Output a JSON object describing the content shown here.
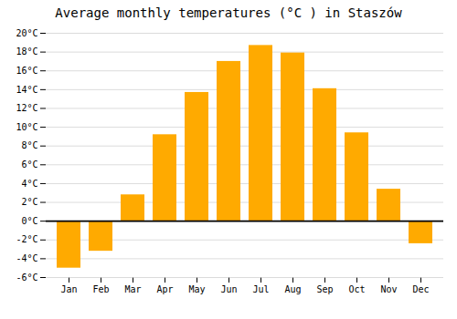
{
  "chart_data": {
    "type": "bar",
    "title": "Average monthly temperatures (°C ) in Staszów",
    "categories": [
      "Jan",
      "Feb",
      "Mar",
      "Apr",
      "May",
      "Jun",
      "Jul",
      "Aug",
      "Sep",
      "Oct",
      "Nov",
      "Dec"
    ],
    "values": [
      -5.0,
      -3.2,
      2.8,
      9.2,
      13.7,
      17.0,
      18.7,
      17.9,
      14.1,
      9.4,
      3.4,
      -2.4
    ],
    "color": "#FFAA00",
    "ylim": [
      -6,
      20
    ],
    "yticks": [
      {
        "value": -6,
        "label": "-6°C"
      },
      {
        "value": -4,
        "label": "-4°C"
      },
      {
        "value": -2,
        "label": "-2°C"
      },
      {
        "value": 0,
        "label": "0°C"
      },
      {
        "value": 2,
        "label": "2°C"
      },
      {
        "value": 4,
        "label": "4°C"
      },
      {
        "value": 6,
        "label": "6°C"
      },
      {
        "value": 8,
        "label": "8°C"
      },
      {
        "value": 10,
        "label": "10°C"
      },
      {
        "value": 12,
        "label": "12°C"
      },
      {
        "value": 14,
        "label": "14°C"
      },
      {
        "value": 16,
        "label": "16°C"
      },
      {
        "value": 18,
        "label": "18°C"
      },
      {
        "value": 20,
        "label": "20°C"
      }
    ],
    "grid": true
  }
}
